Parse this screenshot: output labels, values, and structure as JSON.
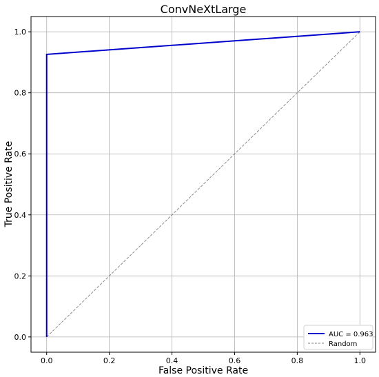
{
  "chart_data": {
    "type": "line",
    "title": "ConvNeXtLarge",
    "xlabel": "False Positive Rate",
    "ylabel": "True Positive Rate",
    "xlim": [
      -0.05,
      1.05
    ],
    "ylim": [
      -0.05,
      1.05
    ],
    "xticks": [
      0.0,
      0.2,
      0.4,
      0.6,
      0.8,
      1.0
    ],
    "yticks": [
      0.0,
      0.2,
      0.4,
      0.6,
      0.8,
      1.0
    ],
    "xtick_labels": [
      "0.0",
      "0.2",
      "0.4",
      "0.6",
      "0.8",
      "1.0"
    ],
    "ytick_labels": [
      "0.0",
      "0.2",
      "0.4",
      "0.6",
      "0.8",
      "1.0"
    ],
    "grid": true,
    "legend_position": "bottom-right",
    "series": [
      {
        "name": "AUC = 0.963",
        "color": "#0000cc",
        "style": "solid",
        "x": [
          0.0,
          0.0,
          1.0
        ],
        "y": [
          0.0,
          0.926,
          1.0
        ]
      },
      {
        "name": "Random",
        "color": "#808080",
        "style": "dashed",
        "x": [
          0.0,
          1.0
        ],
        "y": [
          0.0,
          1.0
        ]
      }
    ]
  }
}
